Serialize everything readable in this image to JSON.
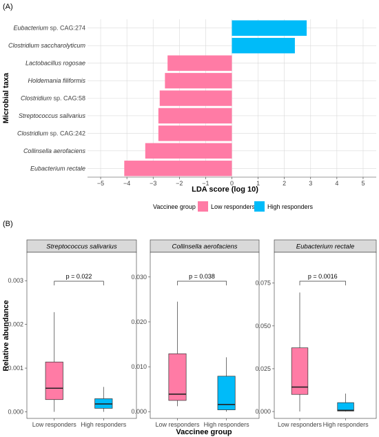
{
  "panel_a_label": "(A)",
  "panel_b_label": "(B)",
  "legend": {
    "title": "Vaccinee group",
    "items": [
      {
        "label": "Low responders",
        "color": "#FF7BA5"
      },
      {
        "label": "High responders",
        "color": "#00BBF9"
      }
    ]
  },
  "chart_data": [
    {
      "type": "bar",
      "orientation": "horizontal",
      "xlabel": "LDA score (log 10)",
      "ylabel": "Microbial taxa",
      "xlim": [
        -5.5,
        5.5
      ],
      "xticks": [
        -5,
        -4,
        -3,
        -2,
        -1,
        0,
        1,
        2,
        3,
        4,
        5
      ],
      "xtick_labels": [
        "−5",
        "−4",
        "−3",
        "−2",
        "−1",
        "0",
        "1",
        "2",
        "3",
        "4",
        "5"
      ],
      "grid": true,
      "legend_position": "bottom",
      "bars": [
        {
          "genus": "Eubacterium",
          "suffix": " sp. CAG:274",
          "value": 2.85,
          "group": "High responders"
        },
        {
          "genus": "Clostridium saccharolyticum",
          "suffix": "",
          "value": 2.4,
          "group": "High responders"
        },
        {
          "genus": "Lactobacillus rogosae",
          "suffix": "",
          "value": -2.45,
          "group": "Low responders"
        },
        {
          "genus": "Holdemania filiformis",
          "suffix": "",
          "value": -2.55,
          "group": "Low responders"
        },
        {
          "genus": "Clostridium",
          "suffix": " sp. CAG:58",
          "value": -2.75,
          "group": "Low responders"
        },
        {
          "genus": "Streptococcus salivarius",
          "suffix": "",
          "value": -2.8,
          "group": "Low responders"
        },
        {
          "genus": "Clostridium",
          "suffix": " sp. CAG:242",
          "value": -2.8,
          "group": "Low responders"
        },
        {
          "genus": "Collinsella aerofaciens",
          "suffix": "",
          "value": -3.3,
          "group": "Low responders"
        },
        {
          "genus": "Eubacterium rectale",
          "suffix": "",
          "value": -4.1,
          "group": "Low responders"
        }
      ]
    },
    {
      "type": "boxplot",
      "title": "Streptococcus salivarius",
      "xlabel": "",
      "ylabel": "Relative abundance",
      "categories": [
        "Low responders",
        "High responders"
      ],
      "ylim": [
        -0.00015,
        0.00365
      ],
      "yticks": [
        0,
        0.001,
        0.002,
        0.003
      ],
      "ytick_labels": [
        "0.000",
        "0.001",
        "0.002",
        "0.003"
      ],
      "pvalue": "p = 0.022",
      "boxes": [
        {
          "min": 0.0,
          "q1": 0.00028,
          "median": 0.00054,
          "q3": 0.00114,
          "max": 0.00228
        },
        {
          "min": 0.0,
          "q1": 8e-05,
          "median": 0.00018,
          "q3": 0.0003,
          "max": 0.00057
        }
      ]
    },
    {
      "type": "boxplot",
      "title": "Collinsella aerofaciens",
      "xlabel": "Vaccinee group",
      "ylabel": "",
      "categories": [
        "Low responders",
        "High responders"
      ],
      "ylim": [
        -0.0015,
        0.0355
      ],
      "yticks": [
        0,
        0.01,
        0.02,
        0.03
      ],
      "ytick_labels": [
        "0.000",
        "0.010",
        "0.020",
        "0.030"
      ],
      "pvalue": "p = 0.038",
      "boxes": [
        {
          "min": 0.0012,
          "q1": 0.0025,
          "median": 0.0039,
          "q3": 0.0129,
          "max": 0.0245
        },
        {
          "min": 0.0,
          "q1": 0.0004,
          "median": 0.0016,
          "q3": 0.0079,
          "max": 0.0121
        }
      ]
    },
    {
      "type": "boxplot",
      "title": "Eubacterium rectale",
      "xlabel": "",
      "ylabel": "",
      "categories": [
        "Low responders",
        "High responders"
      ],
      "ylim": [
        -0.004,
        0.093
      ],
      "yticks": [
        0,
        0.025,
        0.05,
        0.075
      ],
      "ytick_labels": [
        "0.000",
        "0.025",
        "0.050",
        "0.075"
      ],
      "pvalue": "p = 0.0016",
      "boxes": [
        {
          "min": 0.0,
          "q1": 0.01,
          "median": 0.0143,
          "q3": 0.0372,
          "max": 0.0695
        },
        {
          "min": 0.0,
          "q1": 0.0003,
          "median": 0.0007,
          "q3": 0.0052,
          "max": 0.0105
        }
      ]
    }
  ]
}
